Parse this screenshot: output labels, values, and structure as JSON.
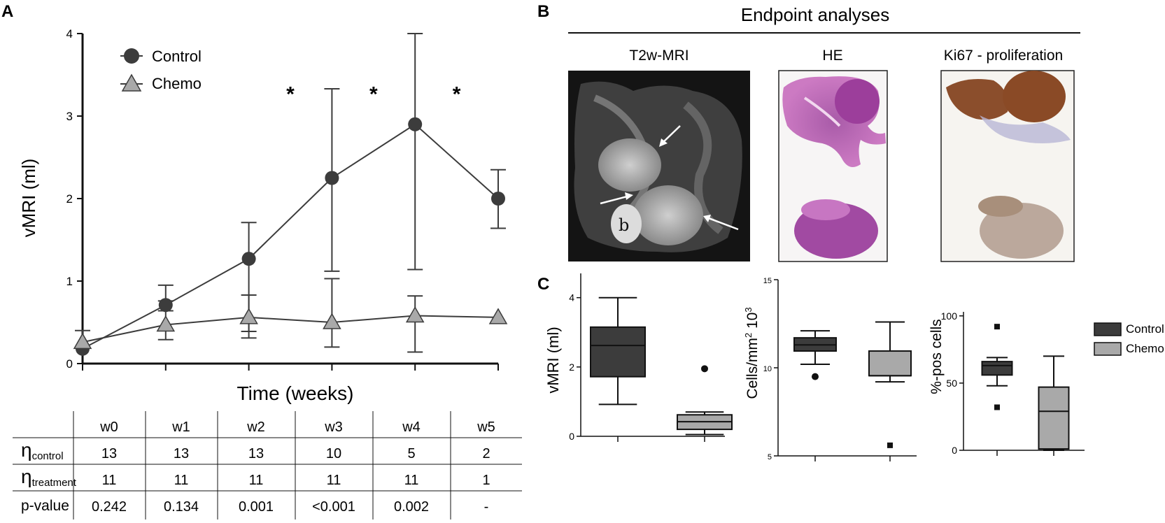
{
  "panel_labels": {
    "a": "A",
    "b": "B",
    "c": "C"
  },
  "colors": {
    "control": "#3c3c3c",
    "chemo": "#a9a9a9",
    "axis": "#111111"
  },
  "chart_data": [
    {
      "type": "line",
      "xlabel": "Time (weeks)",
      "ylabel": "vMRI (ml)",
      "categories": [
        "w0",
        "w1",
        "w2",
        "w3",
        "w4",
        "w5"
      ],
      "ylim": [
        0,
        4
      ],
      "yticks": [
        "0",
        "1",
        "2",
        "3",
        "4"
      ],
      "legend_position": "top-left",
      "series": [
        {
          "name": "Control",
          "marker": "circle",
          "values": [
            0.18,
            0.71,
            1.27,
            2.25,
            2.9,
            2.0
          ],
          "err_low": [
            0.18,
            0.64,
            0.39,
            1.12,
            1.14,
            1.64
          ],
          "err_high": [
            0.18,
            0.95,
            1.71,
            3.33,
            4.0,
            2.35
          ]
        },
        {
          "name": "Chemo",
          "marker": "triangle",
          "values": [
            0.26,
            0.47,
            0.56,
            0.5,
            0.58,
            0.56
          ],
          "err_low": [
            0.19,
            0.29,
            0.31,
            0.2,
            0.14,
            0.56
          ],
          "err_high": [
            0.4,
            0.76,
            0.83,
            1.03,
            0.82,
            0.56
          ]
        }
      ],
      "annotations": [
        {
          "text": "*",
          "x_between": [
            "w2",
            "w3"
          ],
          "y": 3.3
        },
        {
          "text": "*",
          "x_between": [
            "w3",
            "w4"
          ],
          "y": 3.3
        },
        {
          "text": "*",
          "x_between": [
            "w4",
            "w5"
          ],
          "y": 3.3
        }
      ]
    },
    {
      "type": "table",
      "columns": [
        "w0",
        "w1",
        "w2",
        "w3",
        "w4",
        "w5"
      ],
      "rows": [
        {
          "label_main": "η",
          "label_sub": "control",
          "values": [
            "13",
            "13",
            "13",
            "10",
            "5",
            "2"
          ]
        },
        {
          "label_main": "η",
          "label_sub": "treatment",
          "values": [
            "11",
            "11",
            "11",
            "11",
            "11",
            "1"
          ]
        },
        {
          "label_main": "p-value",
          "label_sub": "",
          "values": [
            "0.242",
            "0.134",
            "0.001",
            "<0.001",
            "0.002",
            "-"
          ]
        }
      ]
    },
    {
      "type": "box",
      "ylabel": "vMRI (ml)",
      "ylim": [
        0,
        4.7
      ],
      "yticks": [
        0,
        2,
        4
      ],
      "boxes": [
        {
          "name": "Control",
          "min": 0.92,
          "q1": 1.72,
          "median": 2.62,
          "q3": 3.15,
          "max": 4.0,
          "outliers": []
        },
        {
          "name": "Chemo",
          "min": 0.05,
          "q1": 0.2,
          "median": 0.42,
          "q3": 0.62,
          "max": 0.7,
          "outliers": [
            1.95
          ]
        }
      ]
    },
    {
      "type": "box",
      "ylabel_main": "Cells/mm",
      "ylabel_sup": "2",
      "ylabel_mid": " 10",
      "ylabel_sup2": "3",
      "ylim": [
        5,
        15
      ],
      "yticks": [
        5,
        10,
        15
      ],
      "boxes": [
        {
          "name": "Control",
          "min": 10.2,
          "q1": 10.95,
          "median": 11.3,
          "q3": 11.7,
          "max": 12.1,
          "outliers": [
            9.5
          ]
        },
        {
          "name": "Chemo",
          "min": 9.2,
          "q1": 9.55,
          "median": 9.55,
          "q3": 10.95,
          "max": 12.6,
          "outliers": [
            5.6
          ]
        }
      ]
    },
    {
      "type": "box",
      "ylabel": "%-pos cells",
      "ylim": [
        0,
        103
      ],
      "yticks": [
        0,
        50,
        100
      ],
      "boxes": [
        {
          "name": "Control",
          "min": 48,
          "q1": 56,
          "median": 63,
          "q3": 66,
          "max": 69,
          "outliers": [
            32,
            92
          ]
        },
        {
          "name": "Chemo",
          "min": 0,
          "q1": 1,
          "median": 29,
          "q3": 47,
          "max": 70,
          "outliers": []
        }
      ]
    }
  ],
  "panel_b": {
    "title": "Endpoint analyses",
    "columns": [
      "T2w-MRI",
      "HE",
      "Ki67 - proliferation"
    ],
    "mri_label": "b"
  },
  "legend_c": {
    "items": [
      {
        "name": "Control",
        "color": "#3c3c3c"
      },
      {
        "name": "Chemo",
        "color": "#a9a9a9"
      }
    ]
  }
}
